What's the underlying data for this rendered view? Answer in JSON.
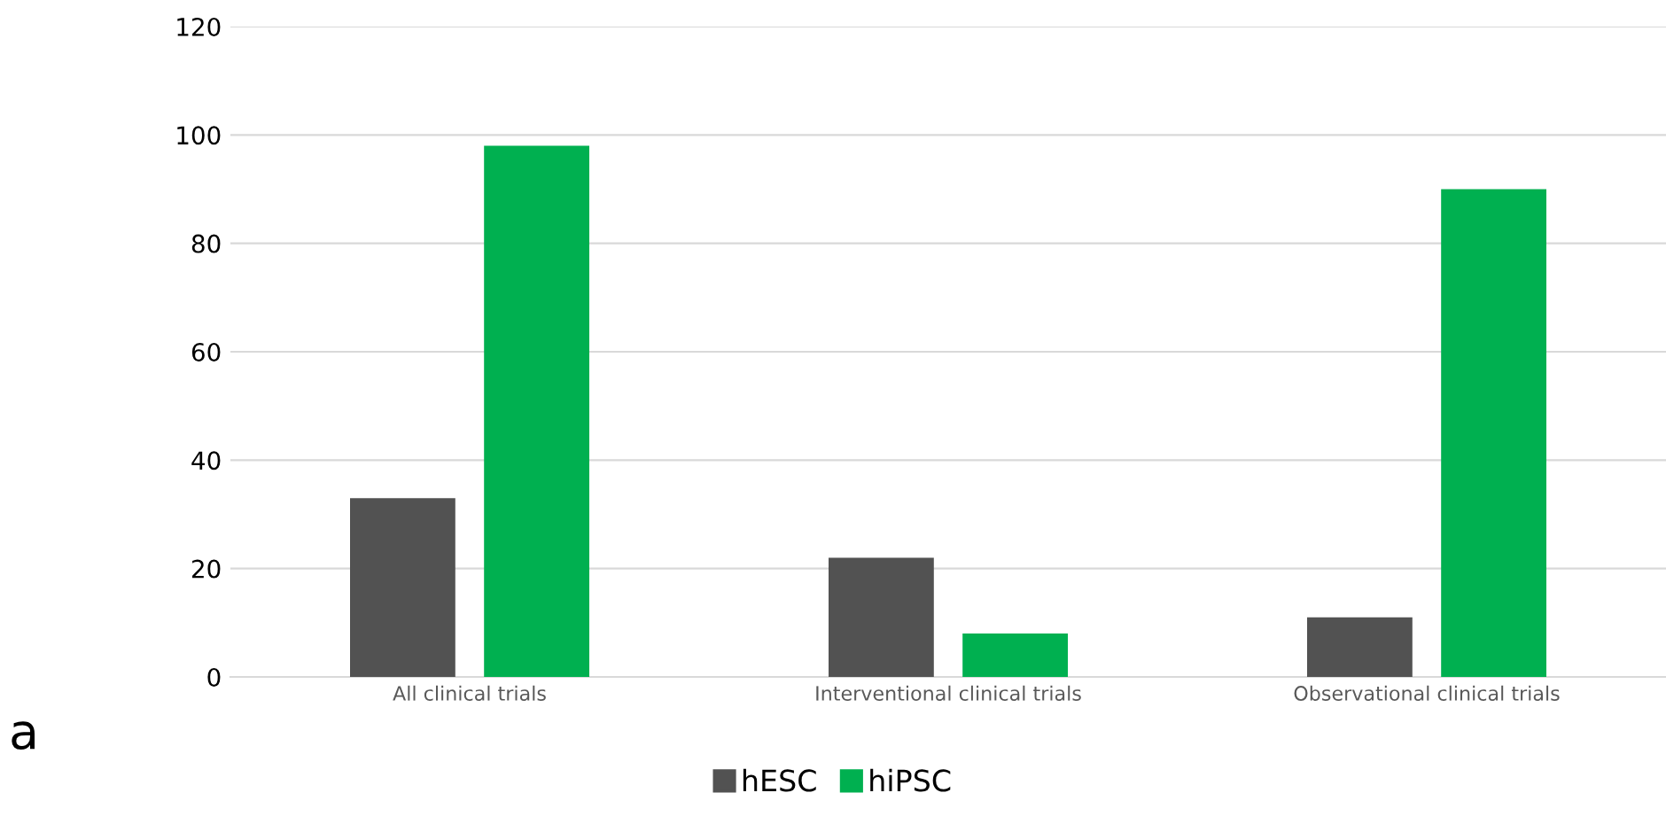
{
  "chart_data": {
    "type": "bar",
    "categories": [
      "All clinical trials",
      "Interventional clinical trials",
      "Observational clinical trials"
    ],
    "series": [
      {
        "name": "hESC",
        "color": "#525252",
        "values": [
          33,
          22,
          11
        ]
      },
      {
        "name": "hiPSC",
        "color": "#00b050",
        "values": [
          98,
          8,
          90
        ]
      }
    ],
    "ylim": [
      0,
      120
    ],
    "yticks": [
      0,
      20,
      40,
      60,
      80,
      100,
      120
    ],
    "grid": "y",
    "legend": "bottom",
    "annotations": [
      "a"
    ]
  }
}
